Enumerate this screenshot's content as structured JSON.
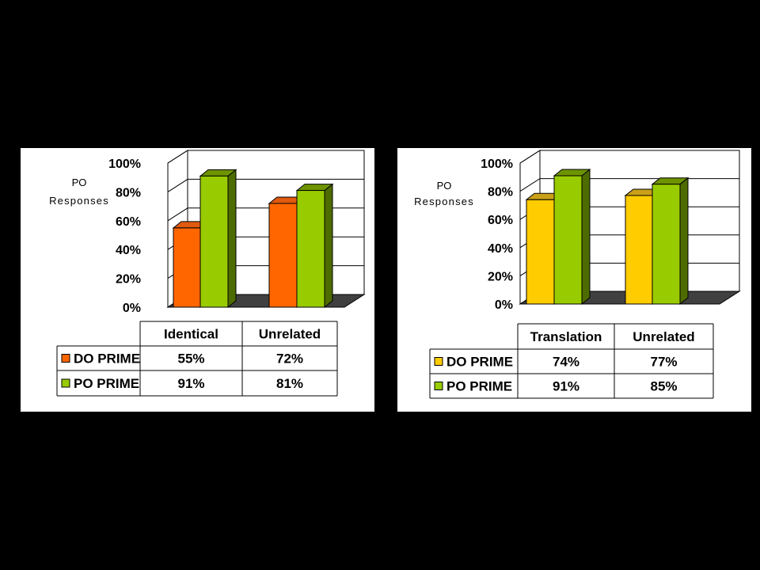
{
  "chart_data": [
    {
      "type": "bar",
      "ylabel": "PO Responses",
      "ylabel_lines": [
        "PO",
        "Responses"
      ],
      "categories": [
        "Identical",
        "Unrelated"
      ],
      "yticks": [
        "0%",
        "20%",
        "40%",
        "60%",
        "80%",
        "100%"
      ],
      "ylim": [
        0,
        100
      ],
      "series": [
        {
          "name": "DO PRIME",
          "values": [
            55,
            72
          ],
          "labels": [
            "55%",
            "72%"
          ],
          "color": "#FF6600",
          "side": "#C04A00",
          "top": "#E05A10"
        },
        {
          "name": "PO PRIME",
          "values": [
            91,
            81
          ],
          "labels": [
            "91%",
            "81%"
          ],
          "color": "#99CC00",
          "side": "#4E6B00",
          "top": "#6E9400"
        }
      ]
    },
    {
      "type": "bar",
      "ylabel": "PO Responses",
      "ylabel_lines": [
        "PO",
        "Responses"
      ],
      "categories": [
        "Translation",
        "Unrelated"
      ],
      "yticks": [
        "0%",
        "20%",
        "40%",
        "60%",
        "80%",
        "100%"
      ],
      "ylim": [
        0,
        100
      ],
      "series": [
        {
          "name": "DO PRIME",
          "values": [
            74,
            77
          ],
          "labels": [
            "74%",
            "77%"
          ],
          "color": "#FFCC00",
          "side": "#A88400",
          "top": "#C9A018"
        },
        {
          "name": "PO PRIME",
          "values": [
            91,
            85
          ],
          "labels": [
            "91%",
            "85%"
          ],
          "color": "#99CC00",
          "side": "#4E6B00",
          "top": "#6E9400"
        }
      ]
    }
  ]
}
